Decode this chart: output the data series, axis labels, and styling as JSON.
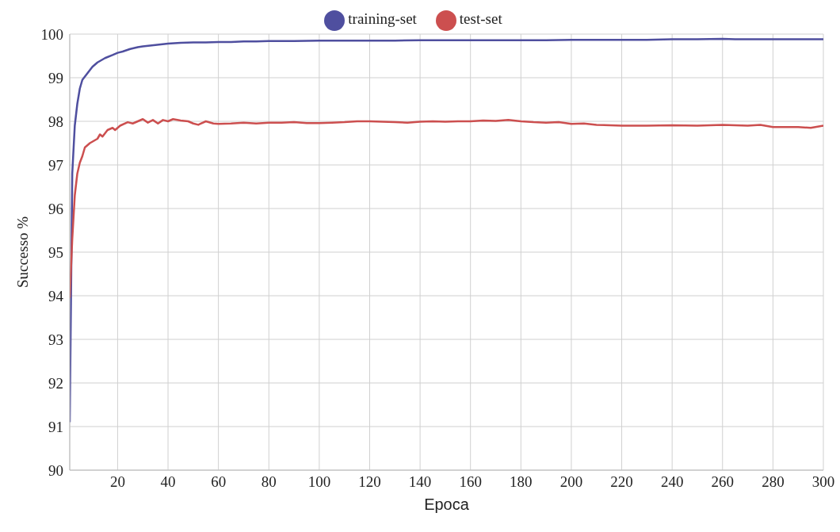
{
  "chart_data": {
    "type": "line",
    "xlabel": "Epoca",
    "ylabel": "Successo %",
    "xlim": [
      1,
      300
    ],
    "xticks": [
      20,
      40,
      60,
      80,
      100,
      120,
      140,
      160,
      180,
      200,
      220,
      240,
      260,
      280,
      300
    ],
    "ylim": [
      90,
      100
    ],
    "yticks": [
      90,
      91,
      92,
      93,
      94,
      95,
      96,
      97,
      98,
      99,
      100
    ],
    "grid": true,
    "legend": "top",
    "marker": "none",
    "line_style": "solid",
    "series": [
      {
        "name": "training-set",
        "color": "#4f4f9f",
        "x": [
          1,
          2,
          3,
          4,
          5,
          6,
          8,
          10,
          12,
          15,
          18,
          20,
          22,
          25,
          28,
          30,
          35,
          40,
          45,
          50,
          55,
          60,
          65,
          70,
          75,
          80,
          90,
          100,
          110,
          120,
          130,
          140,
          150,
          160,
          170,
          180,
          190,
          200,
          210,
          220,
          230,
          240,
          250,
          260,
          265,
          270,
          280,
          290,
          300
        ],
        "values": [
          91.1,
          96.8,
          97.9,
          98.4,
          98.75,
          98.95,
          99.1,
          99.25,
          99.35,
          99.45,
          99.52,
          99.57,
          99.6,
          99.66,
          99.7,
          99.72,
          99.75,
          99.78,
          99.8,
          99.81,
          99.81,
          99.82,
          99.82,
          99.83,
          99.83,
          99.84,
          99.84,
          99.85,
          99.85,
          99.85,
          99.85,
          99.86,
          99.86,
          99.86,
          99.86,
          99.86,
          99.86,
          99.87,
          99.87,
          99.87,
          99.87,
          99.88,
          99.88,
          99.89,
          99.88,
          99.88,
          99.88,
          99.88,
          99.88
        ]
      },
      {
        "name": "test-set",
        "color": "#cc4f4f",
        "x": [
          1,
          2,
          3,
          4,
          5,
          6,
          7,
          9,
          12,
          13,
          14,
          16,
          18,
          19,
          21,
          24,
          26,
          28,
          30,
          32,
          34,
          36,
          38,
          40,
          42,
          45,
          48,
          50,
          52,
          55,
          58,
          60,
          65,
          70,
          75,
          80,
          85,
          90,
          95,
          100,
          105,
          110,
          115,
          120,
          125,
          130,
          135,
          140,
          145,
          150,
          155,
          160,
          165,
          170,
          175,
          180,
          185,
          190,
          195,
          200,
          205,
          210,
          220,
          230,
          240,
          250,
          260,
          270,
          275,
          280,
          290,
          295,
          300
        ],
        "values": [
          93.95,
          95.3,
          96.3,
          96.8,
          97.05,
          97.2,
          97.4,
          97.5,
          97.6,
          97.7,
          97.65,
          97.8,
          97.85,
          97.8,
          97.9,
          97.98,
          97.95,
          98.0,
          98.05,
          97.97,
          98.03,
          97.95,
          98.03,
          98.0,
          98.05,
          98.02,
          98.0,
          97.95,
          97.92,
          98.0,
          97.95,
          97.94,
          97.95,
          97.97,
          97.95,
          97.97,
          97.97,
          97.98,
          97.96,
          97.96,
          97.97,
          97.98,
          98.0,
          98.0,
          97.99,
          97.98,
          97.97,
          97.99,
          98.0,
          97.99,
          98.0,
          98.0,
          98.02,
          98.01,
          98.03,
          98.0,
          97.98,
          97.97,
          97.98,
          97.94,
          97.95,
          97.92,
          97.9,
          97.9,
          97.91,
          97.9,
          97.92,
          97.9,
          97.92,
          97.87,
          97.87,
          97.85,
          97.9
        ]
      }
    ]
  }
}
